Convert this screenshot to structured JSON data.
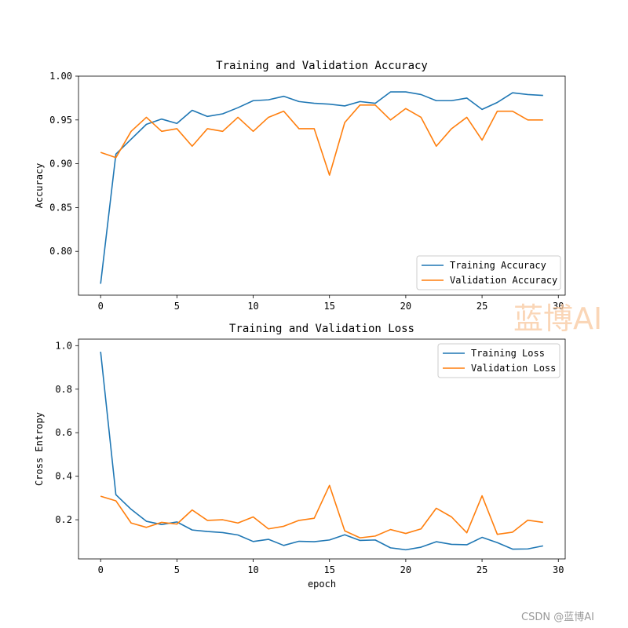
{
  "chart_data": [
    {
      "type": "line",
      "title": "Training and Validation Accuracy",
      "xlabel": "",
      "ylabel": "Accuracy",
      "xlim": [
        -1.45,
        30.45
      ],
      "ylim": [
        0.75,
        1.0
      ],
      "xticks": [
        0,
        5,
        10,
        15,
        20,
        25,
        30
      ],
      "xtick_labels": [
        "0",
        "5",
        "10",
        "15",
        "20",
        "25",
        "30"
      ],
      "yticks": [
        0.8,
        0.85,
        0.9,
        0.95,
        1.0
      ],
      "ytick_labels": [
        "0.80",
        "0.85",
        "0.90",
        "0.95",
        "1.00"
      ],
      "legend_position": "lower-right",
      "x": [
        0,
        1,
        2,
        3,
        4,
        5,
        6,
        7,
        8,
        9,
        10,
        11,
        12,
        13,
        14,
        15,
        16,
        17,
        18,
        19,
        20,
        21,
        22,
        23,
        24,
        25,
        26,
        27,
        28,
        29
      ],
      "series": [
        {
          "name": "Training Accuracy",
          "color": "#1f77b4",
          "values": [
            0.763,
            0.911,
            0.928,
            0.945,
            0.951,
            0.946,
            0.961,
            0.954,
            0.957,
            0.964,
            0.972,
            0.973,
            0.977,
            0.971,
            0.969,
            0.968,
            0.966,
            0.971,
            0.969,
            0.982,
            0.982,
            0.979,
            0.972,
            0.972,
            0.975,
            0.962,
            0.97,
            0.981,
            0.979,
            0.978
          ]
        },
        {
          "name": "Validation Accuracy",
          "color": "#ff7f0e",
          "values": [
            0.913,
            0.907,
            0.937,
            0.953,
            0.937,
            0.94,
            0.92,
            0.94,
            0.937,
            0.953,
            0.937,
            0.953,
            0.96,
            0.94,
            0.94,
            0.887,
            0.947,
            0.967,
            0.967,
            0.95,
            0.963,
            0.953,
            0.92,
            0.94,
            0.953,
            0.927,
            0.96,
            0.96,
            0.95,
            0.95
          ]
        }
      ]
    },
    {
      "type": "line",
      "title": "Training and Validation Loss",
      "xlabel": "epoch",
      "ylabel": "Cross Entropy",
      "xlim": [
        -1.45,
        30.45
      ],
      "ylim": [
        0.02,
        1.03
      ],
      "xticks": [
        0,
        5,
        10,
        15,
        20,
        25,
        30
      ],
      "xtick_labels": [
        "0",
        "5",
        "10",
        "15",
        "20",
        "25",
        "30"
      ],
      "yticks": [
        0.2,
        0.4,
        0.6,
        0.8,
        1.0
      ],
      "ytick_labels": [
        "0.2",
        "0.4",
        "0.6",
        "0.8",
        "1.0"
      ],
      "legend_position": "upper-right",
      "x": [
        0,
        1,
        2,
        3,
        4,
        5,
        6,
        7,
        8,
        9,
        10,
        11,
        12,
        13,
        14,
        15,
        16,
        17,
        18,
        19,
        20,
        21,
        22,
        23,
        24,
        25,
        26,
        27,
        28,
        29
      ],
      "series": [
        {
          "name": "Training Loss",
          "color": "#1f77b4",
          "values": [
            0.972,
            0.315,
            0.248,
            0.193,
            0.178,
            0.19,
            0.153,
            0.146,
            0.141,
            0.13,
            0.1,
            0.11,
            0.082,
            0.101,
            0.099,
            0.107,
            0.131,
            0.105,
            0.107,
            0.071,
            0.062,
            0.074,
            0.099,
            0.087,
            0.085,
            0.119,
            0.095,
            0.065,
            0.066,
            0.08
          ]
        },
        {
          "name": "Validation Loss",
          "color": "#ff7f0e",
          "values": [
            0.308,
            0.287,
            0.185,
            0.165,
            0.188,
            0.18,
            0.245,
            0.197,
            0.2,
            0.185,
            0.213,
            0.158,
            0.17,
            0.197,
            0.207,
            0.358,
            0.149,
            0.117,
            0.125,
            0.155,
            0.137,
            0.158,
            0.253,
            0.213,
            0.14,
            0.31,
            0.133,
            0.143,
            0.198,
            0.188
          ]
        }
      ]
    }
  ],
  "watermark": {
    "main": "蓝博AI",
    "footer": "CSDN @蓝博AI"
  }
}
